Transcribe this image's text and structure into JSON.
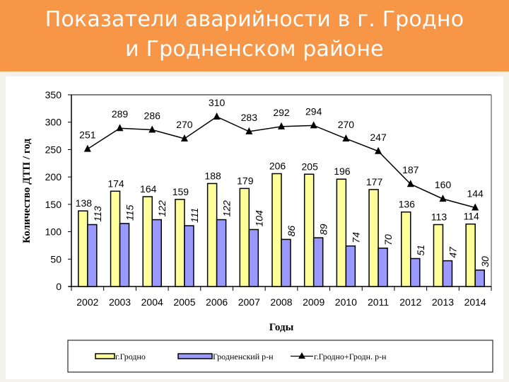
{
  "title": {
    "line1": "Показатели аварийности в г. Гродно",
    "line2": "и Гродненском районе"
  },
  "colors": {
    "header": "#f79646",
    "bar_city": "#ffff99",
    "bar_district": "#9999ff",
    "line_total": "#000000"
  },
  "chart_data": {
    "type": "bar",
    "title": "Показатели аварийности в г. Гродно и Гродненском районе",
    "xlabel": "Годы",
    "ylabel": "Количество ДТП / год",
    "ylim": [
      0,
      350
    ],
    "yticks": [
      0,
      50,
      100,
      150,
      200,
      250,
      300,
      350
    ],
    "grid": false,
    "legend_position": "bottom",
    "categories": [
      "2002",
      "2003",
      "2004",
      "2005",
      "2006",
      "2007",
      "2008",
      "2009",
      "2010",
      "2011",
      "2012",
      "2013",
      "2014"
    ],
    "series": [
      {
        "name": "г.Гродно",
        "kind": "bar",
        "values": [
          138,
          174,
          164,
          159,
          188,
          179,
          206,
          205,
          196,
          177,
          136,
          113,
          114
        ]
      },
      {
        "name": "Гродненский р-н",
        "kind": "bar",
        "values": [
          113,
          115,
          122,
          111,
          122,
          104,
          86,
          89,
          74,
          70,
          51,
          47,
          30
        ]
      },
      {
        "name": "г.Гродно+Гродн. р-н",
        "kind": "line",
        "marker": "triangle",
        "values": [
          251,
          289,
          286,
          270,
          310,
          283,
          292,
          294,
          270,
          247,
          187,
          160,
          144
        ]
      }
    ]
  },
  "legend": {
    "city": "г.Гродно",
    "district": "Гродненский р-н",
    "total": "г.Гродно+Гродн. р-н"
  }
}
